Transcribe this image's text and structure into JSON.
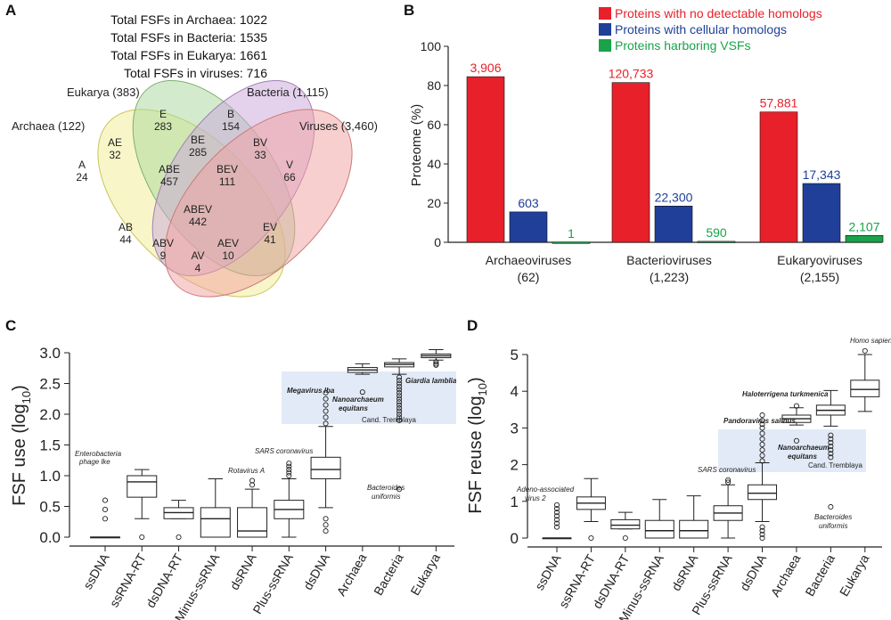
{
  "panelA": {
    "letter": "A",
    "totals": [
      "Total FSFs in Archaea: 1022",
      "Total FSFs in Bacteria: 1535",
      "Total FSFs in Eukarya: 1661",
      "Total FSFs in viruses: 716"
    ],
    "set_labels": [
      "Eukarya (383)",
      "Bacteria (1,115)",
      "Archaea (122)",
      "Viruses (3,460)"
    ],
    "regions": [
      {
        "name": "E",
        "value": "283"
      },
      {
        "name": "B",
        "value": "154"
      },
      {
        "name": "AE",
        "value": "32"
      },
      {
        "name": "BE",
        "value": "285"
      },
      {
        "name": "BV",
        "value": "33"
      },
      {
        "name": "A",
        "value": "24"
      },
      {
        "name": "V",
        "value": "66"
      },
      {
        "name": "ABE",
        "value": "457"
      },
      {
        "name": "BEV",
        "value": "111"
      },
      {
        "name": "ABEV",
        "value": "442"
      },
      {
        "name": "AB",
        "value": "44"
      },
      {
        "name": "EV",
        "value": "41"
      },
      {
        "name": "ABV",
        "value": "9"
      },
      {
        "name": "AEV",
        "value": "10"
      },
      {
        "name": "AV",
        "value": "4"
      }
    ],
    "colors": {
      "archaea": "#f3ef9a",
      "eukarya": "#a8d89a",
      "bacteria": "#c9a6dc",
      "viruses": "#f2a0a0"
    }
  },
  "panelB": {
    "letter": "B",
    "chart_data": {
      "type": "bar",
      "ylabel": "Proteome (%)",
      "ylim": [
        0,
        100
      ],
      "yticks": [
        "0",
        "20",
        "40",
        "60",
        "80",
        "100"
      ],
      "categories": [
        "Archaeoviruses",
        "Bacterioviruses",
        "Eukaryoviruses"
      ],
      "category_counts": [
        "(62)",
        "(1,223)",
        "(2,155)"
      ],
      "series": [
        {
          "name": "Proteins with no detectable homologs",
          "color": "#e8202a",
          "values": [
            84.5,
            81.5,
            66.5
          ],
          "labels": [
            "3,906",
            "120,733",
            "57,881"
          ]
        },
        {
          "name": "Proteins with cellular homologs",
          "color": "#1f3f99",
          "values": [
            15.5,
            18.5,
            30
          ],
          "labels": [
            "603",
            "22,300",
            "17,343"
          ]
        },
        {
          "name": "Proteins harboring VSFs",
          "color": "#19a34a",
          "values": [
            0.1,
            0.5,
            3.5
          ],
          "labels": [
            "1",
            "590",
            "2,107"
          ]
        }
      ],
      "legend_position": "top"
    }
  },
  "panelC": {
    "letter": "C",
    "chart_data": {
      "type": "box",
      "ylabel": "FSF use (log",
      "ylabel_sub": "10",
      "ylabel_close": ")",
      "ylim": [
        0,
        3.0
      ],
      "yticks": [
        "0.0",
        "0.5",
        "1.0",
        "1.5",
        "2.0",
        "2.5",
        "3.0"
      ],
      "categories": [
        "ssDNA",
        "ssRNA-RT",
        "dsDNA-RT",
        "Minus-ssRNA",
        "dsRNA",
        "Plus-ssRNA",
        "dsDNA",
        "Archaea",
        "Bacteria",
        "Eukarya"
      ],
      "boxes": [
        {
          "min": 0,
          "q1": 0,
          "median": 0,
          "q3": 0,
          "max": 0,
          "outliers": [
            0.3,
            0.45,
            0.6
          ]
        },
        {
          "min": 0.3,
          "q1": 0.65,
          "median": 0.9,
          "q3": 1.0,
          "max": 1.1,
          "outliers": [
            0
          ]
        },
        {
          "min": 0.3,
          "q1": 0.3,
          "median": 0.4,
          "q3": 0.48,
          "max": 0.6,
          "outliers": [
            0
          ]
        },
        {
          "min": 0,
          "q1": 0,
          "median": 0.3,
          "q3": 0.48,
          "max": 0.95,
          "outliers": []
        },
        {
          "min": 0,
          "q1": 0,
          "median": 0.1,
          "q3": 0.48,
          "max": 0.78,
          "outliers": [
            0.85,
            0.92
          ]
        },
        {
          "min": 0,
          "q1": 0.3,
          "median": 0.45,
          "q3": 0.6,
          "max": 0.95,
          "outliers": [
            1.0,
            1.05,
            1.1,
            1.15,
            1.2
          ]
        },
        {
          "min": 0.48,
          "q1": 0.95,
          "median": 1.1,
          "q3": 1.3,
          "max": 1.8,
          "outliers": [
            0.1,
            0.2,
            0.3,
            1.85,
            1.95,
            2.05,
            2.15,
            2.25,
            2.35
          ]
        },
        {
          "min": 2.65,
          "q1": 2.68,
          "median": 2.72,
          "q3": 2.76,
          "max": 2.82,
          "outliers": [
            2.36
          ]
        },
        {
          "min": 2.65,
          "q1": 2.77,
          "median": 2.81,
          "q3": 2.84,
          "max": 2.9,
          "outliers": [
            2.6,
            2.55,
            2.5,
            2.45,
            2.4,
            2.35,
            2.3,
            2.25,
            2.2,
            2.15,
            2.1,
            2.05,
            2.0,
            1.95,
            1.9,
            0.78
          ]
        },
        {
          "min": 2.88,
          "q1": 2.92,
          "median": 2.95,
          "q3": 2.98,
          "max": 3.05,
          "outliers": [
            2.85,
            2.82,
            2.8
          ]
        }
      ],
      "annotations": {
        "phage": [
          "Enterobacteria",
          "phage lke"
        ],
        "rotavirus": "Rotavirus A",
        "sars": "SARS coronavirus",
        "megavirus": "Megavirus lba",
        "nanoarch": [
          "Nanoarchaeum",
          "equitans"
        ],
        "giardia": "Giardia lamblia",
        "tremblaya": "Cand. Tremblaya",
        "bacteroides": [
          "Bacteroides",
          "uniformis"
        ]
      }
    }
  },
  "panelD": {
    "letter": "D",
    "chart_data": {
      "type": "box",
      "ylabel": "FSF reuse (log",
      "ylabel_sub": "10",
      "ylabel_close": ")",
      "ylim": [
        0,
        5
      ],
      "yticks": [
        "0",
        "1",
        "2",
        "3",
        "4",
        "5"
      ],
      "categories": [
        "ssDNA",
        "ssRNA-RT",
        "dsDNA-RT",
        "Minus-ssRNA",
        "dsRNA",
        "Plus-ssRNA",
        "dsDNA",
        "Archaea",
        "Bacteria",
        "Eukarya"
      ],
      "boxes": [
        {
          "min": 0,
          "q1": 0,
          "median": 0,
          "q3": 0,
          "max": 0,
          "outliers": [
            0.3,
            0.4,
            0.5,
            0.6,
            0.7,
            0.8,
            0.9
          ]
        },
        {
          "min": 0.45,
          "q1": 0.78,
          "median": 0.95,
          "q3": 1.12,
          "max": 1.62,
          "outliers": [
            0
          ]
        },
        {
          "min": 0.25,
          "q1": 0.25,
          "median": 0.35,
          "q3": 0.5,
          "max": 0.7,
          "outliers": [
            0
          ]
        },
        {
          "min": 0,
          "q1": 0,
          "median": 0.2,
          "q3": 0.48,
          "max": 1.05,
          "outliers": []
        },
        {
          "min": 0,
          "q1": 0,
          "median": 0.2,
          "q3": 0.48,
          "max": 1.15,
          "outliers": []
        },
        {
          "min": 0,
          "q1": 0.48,
          "median": 0.68,
          "q3": 0.88,
          "max": 1.45,
          "outliers": [
            1.52,
            1.58
          ]
        },
        {
          "min": 0.45,
          "q1": 1.05,
          "median": 1.22,
          "q3": 1.45,
          "max": 2.05,
          "outliers": [
            0,
            0.1,
            0.2,
            0.3,
            2.1,
            2.25,
            2.4,
            2.55,
            2.7,
            2.85,
            3.0,
            3.1,
            3.2,
            3.35
          ]
        },
        {
          "min": 3.08,
          "q1": 3.15,
          "median": 3.25,
          "q3": 3.35,
          "max": 3.55,
          "outliers": [
            2.65,
            3.6
          ]
        },
        {
          "min": 3.05,
          "q1": 3.35,
          "median": 3.48,
          "q3": 3.62,
          "max": 4.02,
          "outliers": [
            0.85,
            2.2,
            2.3,
            2.4,
            2.5,
            2.6,
            2.7,
            2.8
          ]
        },
        {
          "min": 3.45,
          "q1": 3.85,
          "median": 4.05,
          "q3": 4.3,
          "max": 5.0,
          "outliers": [
            5.1
          ]
        }
      ],
      "annotations": {
        "adeno": [
          "Adeno-associated",
          "virus 2"
        ],
        "sars": "SARS coronavirus",
        "pandoravirus": "Pandoravirus salinus",
        "haloterrigena": "Haloterrigena turkmenica",
        "nanoarch": [
          "Nanoarchaeum",
          "equitans"
        ],
        "tremblaya": "Cand. Tremblaya",
        "bacteroides": [
          "Bacteroides",
          "uniformis"
        ],
        "homo": "Homo sapiens"
      }
    }
  }
}
